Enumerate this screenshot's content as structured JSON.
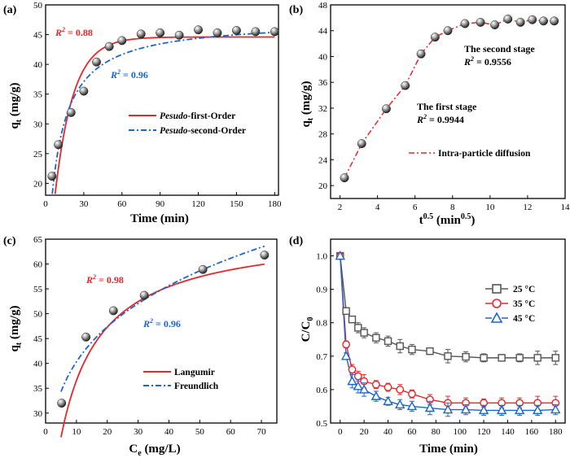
{
  "chart_data": [
    {
      "type": "scatter",
      "panel_label": "(a)",
      "xlabel": "Time (min)",
      "ylabel_main": "q",
      "ylabel_sub": "t",
      "ylabel_units": " (mg/g)",
      "xlim": [
        0,
        183
      ],
      "ylim": [
        18,
        50
      ],
      "xticks": [
        0,
        30,
        60,
        90,
        120,
        150,
        180
      ],
      "yticks": [
        20,
        25,
        30,
        35,
        40,
        45,
        50
      ],
      "points": {
        "x": [
          5,
          10,
          20,
          30,
          40,
          50,
          60,
          75,
          90,
          105,
          120,
          135,
          150,
          165,
          180
        ],
        "y": [
          21.2,
          26.5,
          31.9,
          35.5,
          40.4,
          43.0,
          44.0,
          45.1,
          45.3,
          44.9,
          45.8,
          45.3,
          45.7,
          45.5,
          45.5
        ]
      },
      "fits": [
        {
          "name_italic": "Pesudo",
          "name_rest": "-first-Order",
          "model": "pfo",
          "qe": 44.6,
          "k": 0.07,
          "color": "#e8262a",
          "dash": "solid"
        },
        {
          "name_italic": "Pesudo",
          "name_rest": "-second-Order",
          "model": "pso",
          "qe": 47.5,
          "k": 0.0025,
          "color": "#1a66cc",
          "dash": "dashdot"
        }
      ],
      "annotations": [
        {
          "r_label": "R",
          "sup": "2",
          "text": " = 0.88",
          "color": "#e8262a"
        },
        {
          "r_label": "R",
          "sup": "2",
          "text": " = 0.96",
          "color": "#1a66cc"
        }
      ],
      "legend_placement": "bottom-right"
    },
    {
      "type": "scatter",
      "panel_label": "(b)",
      "xlabel_main": "t",
      "xlabel_sup": "0.5",
      "xlabel_units": " (min",
      "xlabel_units_sup": "0.5",
      "xlabel_close": ")",
      "ylabel_main": "q",
      "ylabel_sub": "t",
      "ylabel_units": " (mg/g)",
      "xlim": [
        1.5,
        14
      ],
      "ylim": [
        18,
        48
      ],
      "xticks": [
        2,
        4,
        6,
        8,
        10,
        12,
        14
      ],
      "yticks": [
        20,
        24,
        28,
        32,
        36,
        40,
        44,
        48
      ],
      "points": {
        "x": [
          2.24,
          3.16,
          4.47,
          5.48,
          6.32,
          7.07,
          7.75,
          8.66,
          9.49,
          10.25,
          10.95,
          11.62,
          12.25,
          12.85,
          13.42
        ],
        "y": [
          21.2,
          26.5,
          31.9,
          35.5,
          40.4,
          43.0,
          44.0,
          45.1,
          45.3,
          44.9,
          45.8,
          45.3,
          45.7,
          45.5,
          45.5
        ]
      },
      "line": {
        "name": "Intra-particle diffusion",
        "color": "#e8262a",
        "x": [
          2.24,
          3.16,
          4.47,
          5.48,
          6.32,
          7.07,
          7.75,
          8.66,
          9.49,
          10.25,
          10.95,
          11.62,
          12.25,
          12.85,
          13.42
        ],
        "y": [
          21.2,
          26.5,
          31.9,
          35.5,
          40.4,
          43.0,
          44.0,
          45.1,
          45.3,
          44.9,
          45.8,
          45.3,
          45.7,
          45.5,
          45.5
        ]
      },
      "stage_labels": [
        {
          "title": "The second stage",
          "r_label": "R",
          "sup": "2",
          "text": " = 0.9556"
        },
        {
          "title": "The first stage",
          "r_label": "R",
          "sup": "2",
          "text": " = 0.9944"
        }
      ],
      "legend_placement": "bottom-right"
    },
    {
      "type": "scatter",
      "panel_label": "(c)",
      "xlabel_main": "C",
      "xlabel_sub": "e",
      "xlabel_units": " (mg/L)",
      "ylabel_main": "q",
      "ylabel_sub": "t",
      "ylabel_units": " (mg/g)",
      "xlim": [
        0,
        75
      ],
      "ylim": [
        28,
        65
      ],
      "xticks": [
        0,
        10,
        20,
        30,
        40,
        50,
        60,
        70
      ],
      "yticks": [
        30,
        35,
        40,
        45,
        50,
        55,
        60,
        65
      ],
      "points": {
        "x": [
          5.2,
          13.1,
          22.0,
          32.0,
          51.0,
          71.0
        ],
        "y": [
          32.0,
          45.3,
          50.6,
          53.7,
          58.9,
          61.8
        ]
      },
      "fits": [
        {
          "name": "Langumir",
          "model": "langmuir",
          "qm": 67,
          "k": 0.12,
          "color": "#e8262a",
          "dash": "solid"
        },
        {
          "name": "Freundlich",
          "model": "freundlich",
          "kf": 23.6,
          "n": 4.3,
          "color": "#1a66cc",
          "dash": "dashdot"
        }
      ],
      "annotations": [
        {
          "r_label": "R",
          "sup": "2",
          "text": " = 0.98",
          "color": "#e8262a"
        },
        {
          "r_label": "R",
          "sup": "2",
          "text": " = 0.96",
          "color": "#1a66cc"
        }
      ],
      "legend_placement": "bottom-right"
    },
    {
      "type": "line",
      "panel_label": "(d)",
      "xlabel": "Time (min)",
      "ylabel_main": "C/C",
      "ylabel_sub": "0",
      "xlim": [
        -8,
        188
      ],
      "ylim": [
        0.5,
        1.05
      ],
      "xticks": [
        0,
        20,
        40,
        60,
        80,
        100,
        120,
        140,
        160,
        180
      ],
      "yticks": [
        0.5,
        0.6,
        0.7,
        0.8,
        0.9,
        1.0
      ],
      "ytick_labels": [
        "0.5",
        "0.6",
        "0.7",
        "0.8",
        "0.9",
        "1.0"
      ],
      "x": [
        0,
        5,
        10,
        15,
        20,
        30,
        40,
        50,
        60,
        75,
        90,
        105,
        120,
        135,
        150,
        165,
        180
      ],
      "series": [
        {
          "name": "25 °C",
          "marker": "square",
          "color": "#555555",
          "values": [
            1.0,
            0.835,
            0.81,
            0.785,
            0.77,
            0.755,
            0.745,
            0.73,
            0.72,
            0.715,
            0.7,
            0.698,
            0.695,
            0.695,
            0.695,
            0.695,
            0.695
          ],
          "errors": [
            0,
            0.008,
            0.01,
            0.015,
            0.015,
            0.015,
            0.015,
            0.02,
            0.015,
            0.01,
            0.02,
            0.015,
            0.012,
            0.01,
            0.012,
            0.02,
            0.02
          ]
        },
        {
          "name": "35 °C",
          "marker": "circle",
          "color": "#e8262a",
          "values": [
            1.0,
            0.735,
            0.66,
            0.64,
            0.625,
            0.615,
            0.607,
            0.6,
            0.587,
            0.57,
            0.56,
            0.56,
            0.56,
            0.56,
            0.56,
            0.56,
            0.56
          ],
          "errors": [
            0,
            0.01,
            0.015,
            0.015,
            0.02,
            0.012,
            0.012,
            0.015,
            0.012,
            0.015,
            0.02,
            0.015,
            0.012,
            0.015,
            0.015,
            0.02,
            0.02
          ]
        },
        {
          "name": "45 °C",
          "marker": "triangle",
          "color": "#1a66cc",
          "values": [
            1.0,
            0.7,
            0.625,
            0.61,
            0.6,
            0.58,
            0.565,
            0.555,
            0.55,
            0.545,
            0.54,
            0.54,
            0.538,
            0.538,
            0.538,
            0.538,
            0.54
          ],
          "errors": [
            0,
            0.01,
            0.02,
            0.02,
            0.02,
            0.015,
            0.012,
            0.015,
            0.015,
            0.02,
            0.02,
            0.015,
            0.015,
            0.015,
            0.015,
            0.015,
            0.015
          ]
        }
      ],
      "legend_placement": "top-right"
    }
  ]
}
